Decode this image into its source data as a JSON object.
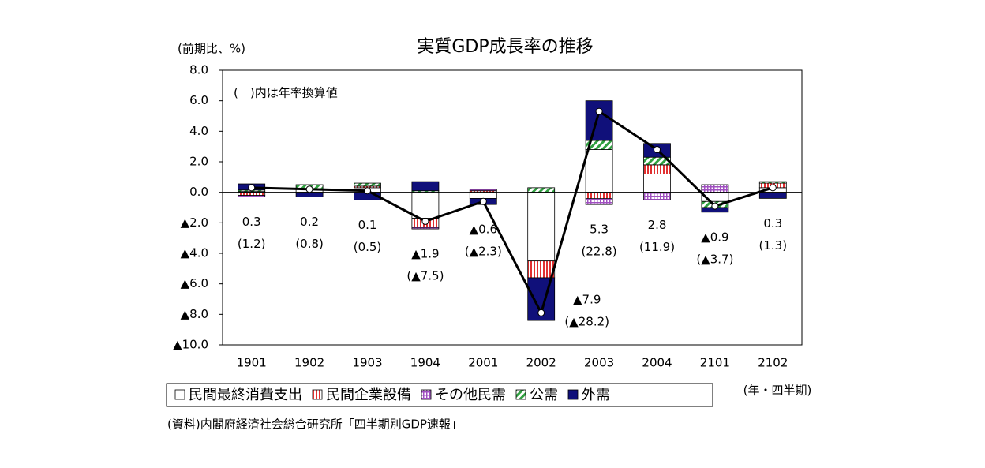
{
  "chart_data": {
    "type": "stacked_bar_line",
    "title": "実質GDP成長率の推移",
    "y_label": "(前期比、%)",
    "x_label": "(年・四半期)",
    "annotation": "(　)内は年率換算値",
    "source": "(資料)内閣府経済社会総合研究所「四半期別GDP速報」",
    "categories": [
      "1901",
      "1902",
      "1903",
      "1904",
      "2001",
      "2002",
      "2003",
      "2004",
      "2101",
      "2102"
    ],
    "series": [
      {
        "name": "民間最終消費支出",
        "color": "#ffffff",
        "pattern": "solid",
        "values": [
          0.05,
          0.2,
          0.3,
          -1.7,
          -0.4,
          -4.5,
          2.8,
          1.2,
          -0.6,
          0.3
        ]
      },
      {
        "name": "民間企業設備",
        "color": "#e03030",
        "pattern": "vertical",
        "values": [
          -0.2,
          0.0,
          0.1,
          -0.6,
          0.1,
          -1.1,
          -0.4,
          0.6,
          0.0,
          0.3
        ]
      },
      {
        "name": "その他民需",
        "color": "#a050c0",
        "pattern": "grid",
        "values": [
          -0.1,
          0.0,
          0.0,
          -0.1,
          0.1,
          0.0,
          -0.4,
          -0.5,
          0.5,
          0.0
        ]
      },
      {
        "name": "公需",
        "color": "#30a040",
        "pattern": "diagonal",
        "values": [
          0.1,
          0.3,
          0.2,
          0.1,
          0.0,
          0.3,
          0.6,
          0.5,
          -0.4,
          0.1
        ]
      },
      {
        "name": "外需",
        "color": "#10107a",
        "pattern": "solid",
        "values": [
          0.4,
          -0.3,
          -0.5,
          0.6,
          -0.4,
          -2.8,
          2.6,
          0.9,
          -0.3,
          -0.4
        ]
      }
    ],
    "line": {
      "color": "#000000",
      "values": [
        0.3,
        0.2,
        0.1,
        -1.9,
        -0.6,
        -7.9,
        5.3,
        2.8,
        -0.9,
        0.3
      ],
      "value_labels": [
        "0.3",
        "0.2",
        "0.1",
        "▲1.9",
        "▲0.6",
        "▲7.9",
        "5.3",
        "2.8",
        "▲0.9",
        "0.3"
      ],
      "annual_values": [
        1.2,
        0.8,
        0.5,
        -7.5,
        -2.3,
        -28.2,
        22.8,
        11.9,
        -3.7,
        1.3
      ],
      "annual_labels": [
        "(1.2)",
        "(0.8)",
        "(0.5)",
        "(▲7.5)",
        "(▲2.3)",
        "(▲28.2)",
        "(22.8)",
        "(11.9)",
        "(▲3.7)",
        "(1.3)"
      ]
    },
    "ylim": [
      -10,
      8
    ],
    "yticks": [
      {
        "value": 8,
        "label": "8.0"
      },
      {
        "value": 6,
        "label": "6.0"
      },
      {
        "value": 4,
        "label": "4.0"
      },
      {
        "value": 2,
        "label": "2.0"
      },
      {
        "value": 0,
        "label": "0.0"
      },
      {
        "value": -2,
        "label": "▲2.0"
      },
      {
        "value": -4,
        "label": "▲4.0"
      },
      {
        "value": -6,
        "label": "▲6.0"
      },
      {
        "value": -8,
        "label": "▲8.0"
      },
      {
        "value": -10,
        "label": "▲10.0"
      }
    ]
  }
}
